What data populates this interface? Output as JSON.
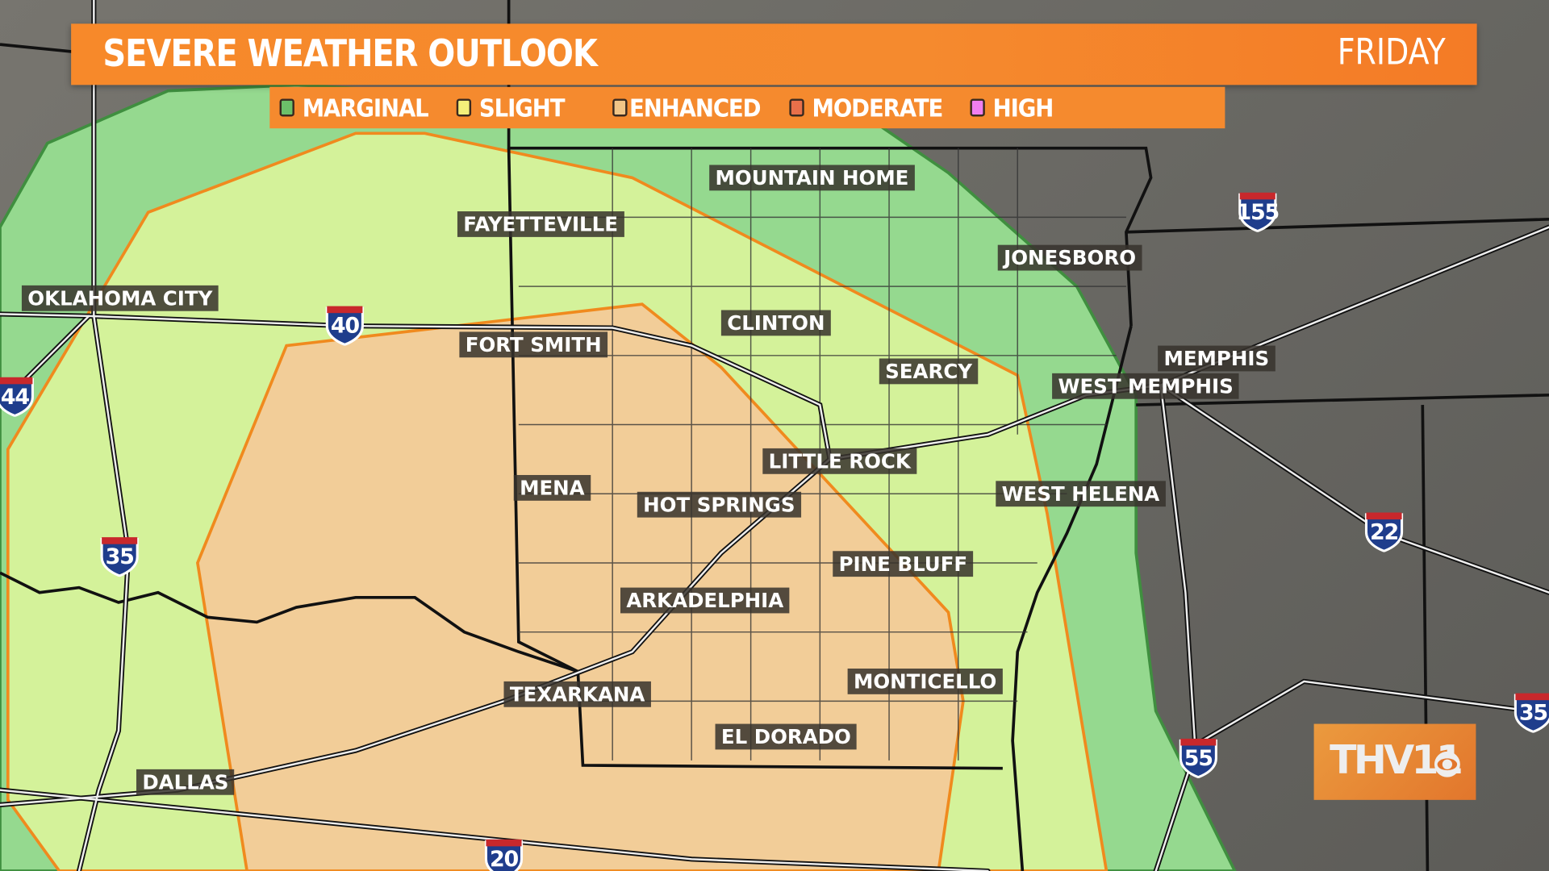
{
  "header": {
    "title": "SEVERE WEATHER OUTLOOK",
    "day": "FRIDAY"
  },
  "legend": [
    {
      "label": "MARGINAL",
      "color": "#6cc06a"
    },
    {
      "label": "SLIGHT",
      "color": "#f4f07a"
    },
    {
      "label": "ENHANCED",
      "color": "#f1c587"
    },
    {
      "label": "MODERATE",
      "color": "#e8704a"
    },
    {
      "label": "HIGH",
      "color": "#f07ff0"
    }
  ],
  "risk_colors": {
    "marginal": "#95d98f",
    "slight": "#d4f29a",
    "enhanced": "#f2cd98"
  },
  "cities": [
    "MOUNTAIN HOME",
    "FAYETTEVILLE",
    "JONESBORO",
    "OKLAHOMA CITY",
    "CLINTON",
    "FORT SMITH",
    "MEMPHIS",
    "SEARCY",
    "WEST MEMPHIS",
    "LITTLE ROCK",
    "MENA",
    "WEST HELENA",
    "HOT SPRINGS",
    "PINE BLUFF",
    "ARKADELPHIA",
    "MONTICELLO",
    "TEXARKANA",
    "EL DORADO",
    "DALLAS"
  ],
  "interstates": [
    "40",
    "155",
    "44",
    "35",
    "22",
    "55",
    "35",
    "20"
  ],
  "logo": {
    "text": "THV11",
    "network": "CBS"
  }
}
